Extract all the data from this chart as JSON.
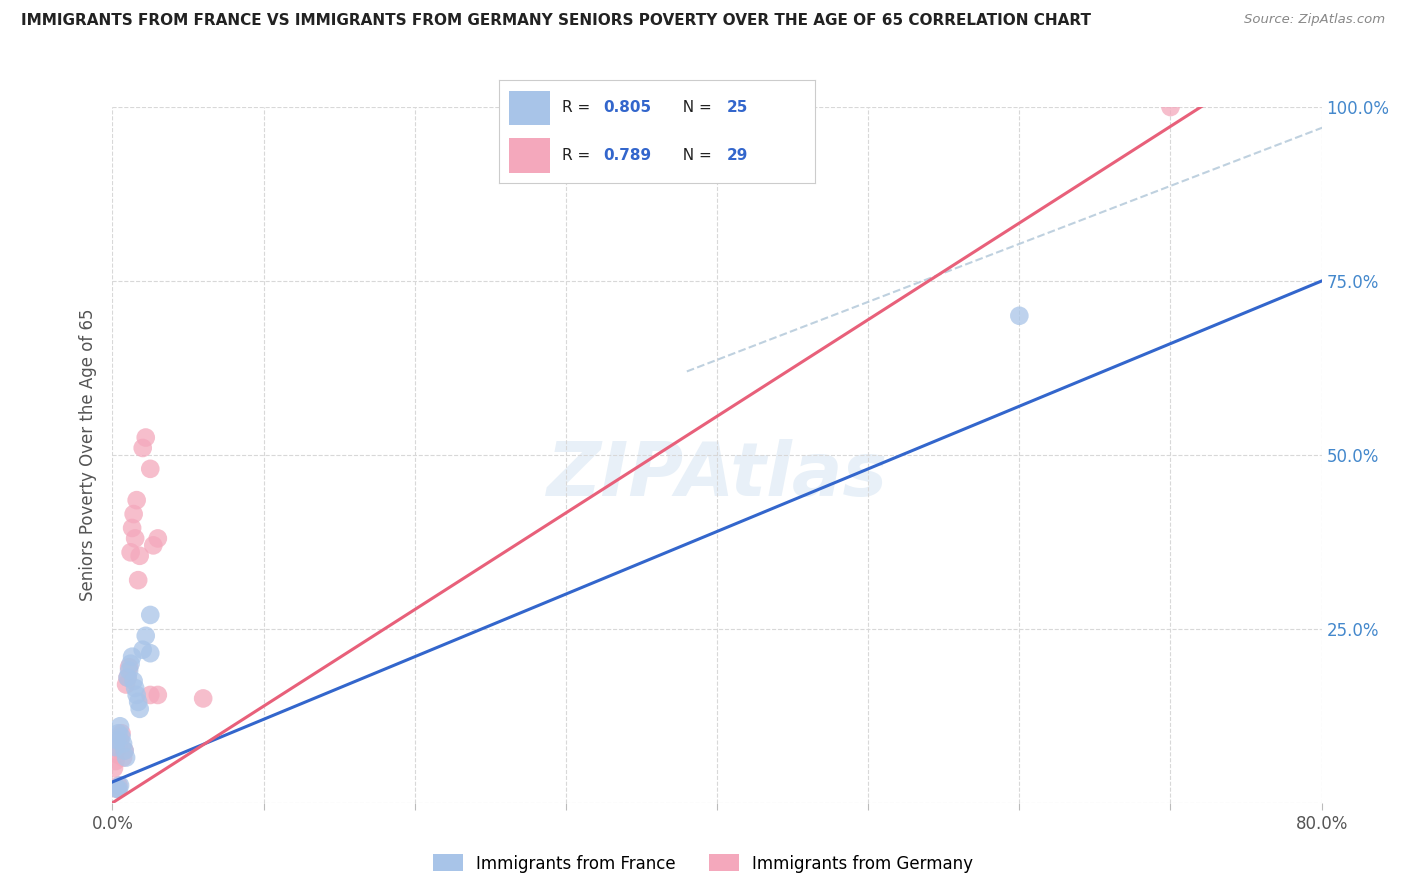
{
  "title": "IMMIGRANTS FROM FRANCE VS IMMIGRANTS FROM GERMANY SENIORS POVERTY OVER THE AGE OF 65 CORRELATION CHART",
  "source": "Source: ZipAtlas.com",
  "ylabel": "Seniors Poverty Over the Age of 65",
  "xlim": [
    0.0,
    0.8
  ],
  "ylim": [
    0.0,
    1.0
  ],
  "xticks": [
    0.0,
    0.1,
    0.2,
    0.3,
    0.4,
    0.5,
    0.6,
    0.7,
    0.8
  ],
  "ytick_positions": [
    0.0,
    0.25,
    0.5,
    0.75,
    1.0
  ],
  "yticklabels": [
    "",
    "25.0%",
    "50.0%",
    "75.0%",
    "100.0%"
  ],
  "france_R": 0.805,
  "france_N": 25,
  "germany_R": 0.789,
  "germany_N": 29,
  "france_color": "#a8c4e8",
  "germany_color": "#f4a8bc",
  "france_line_color": "#3366cc",
  "germany_line_color": "#e8607a",
  "ref_line_color": "#b8ccdc",
  "watermark": "ZIPAtlas",
  "france_x": [
    0.002,
    0.003,
    0.004,
    0.005,
    0.006,
    0.007,
    0.008,
    0.009,
    0.01,
    0.011,
    0.012,
    0.013,
    0.014,
    0.015,
    0.016,
    0.017,
    0.018,
    0.02,
    0.022,
    0.025,
    0.003,
    0.004,
    0.005,
    0.6,
    0.025
  ],
  "france_y": [
    0.08,
    0.09,
    0.1,
    0.11,
    0.095,
    0.085,
    0.075,
    0.065,
    0.18,
    0.19,
    0.2,
    0.21,
    0.175,
    0.165,
    0.155,
    0.145,
    0.135,
    0.22,
    0.24,
    0.215,
    0.02,
    0.02,
    0.025,
    0.7,
    0.27
  ],
  "germany_x": [
    0.001,
    0.002,
    0.003,
    0.004,
    0.005,
    0.006,
    0.007,
    0.008,
    0.009,
    0.01,
    0.011,
    0.012,
    0.013,
    0.014,
    0.015,
    0.016,
    0.017,
    0.018,
    0.02,
    0.022,
    0.025,
    0.027,
    0.03,
    0.025,
    0.03,
    0.06,
    0.003,
    0.004,
    0.7
  ],
  "germany_y": [
    0.05,
    0.06,
    0.07,
    0.08,
    0.09,
    0.1,
    0.065,
    0.075,
    0.17,
    0.18,
    0.195,
    0.36,
    0.395,
    0.415,
    0.38,
    0.435,
    0.32,
    0.355,
    0.51,
    0.525,
    0.48,
    0.37,
    0.38,
    0.155,
    0.155,
    0.15,
    0.02,
    0.025,
    1.0
  ],
  "france_line_x0": 0.0,
  "france_line_y0": 0.03,
  "france_line_x1": 0.8,
  "france_line_y1": 0.75,
  "germany_line_x0": 0.0,
  "germany_line_y0": 0.0,
  "germany_line_x1": 0.72,
  "germany_line_y1": 1.0,
  "ref_line_x0": 0.38,
  "ref_line_y0": 0.62,
  "ref_line_x1": 0.8,
  "ref_line_y1": 0.97,
  "background_color": "#ffffff",
  "grid_color": "#d8d8d8"
}
